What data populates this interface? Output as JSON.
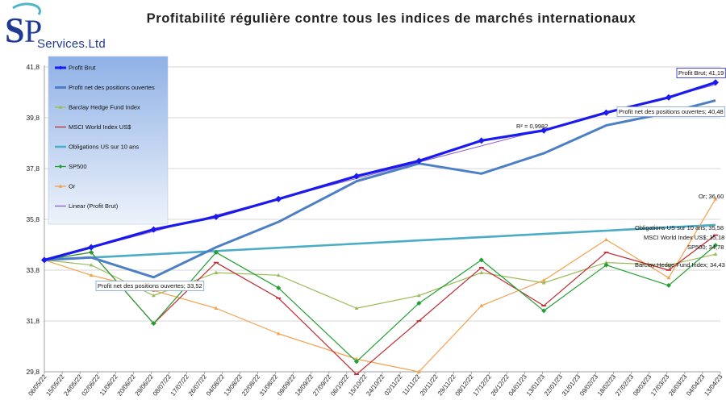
{
  "brand": {
    "logo_letters": "SP",
    "logo_text": "Services.Ltd"
  },
  "chart_data": {
    "type": "line",
    "title": "Profitabilité régulière contre tous les indices de marchés internationaux",
    "xlabel": "",
    "ylabel": "",
    "ylim": [
      29.8,
      41.8
    ],
    "yticks": [
      29.8,
      31.8,
      33.8,
      35.8,
      37.8,
      39.8,
      41.8
    ],
    "ytick_labels": [
      "29,8",
      "31,8",
      "33,8",
      "35,8",
      "37,8",
      "39,8",
      "41,8"
    ],
    "grid": "horizontal",
    "legend_position": "top-left",
    "x": [
      "06/05/22",
      "15/05/22",
      "24/05/22",
      "02/06/22",
      "11/06/22",
      "20/06/22",
      "29/06/22",
      "08/07/22",
      "17/07/22",
      "26/07/22",
      "04/08/22",
      "13/08/22",
      "22/08/22",
      "31/08/22",
      "09/09/22",
      "18/09/22",
      "27/09/22",
      "06/10/22",
      "15/10/22",
      "24/10/22",
      "02/11/22",
      "11/11/22",
      "20/11/22",
      "29/11/22",
      "08/12/22",
      "17/12/22",
      "26/12/22",
      "04/01/23",
      "13/01/23",
      "22/01/23",
      "31/01/23",
      "09/02/23",
      "18/02/23",
      "27/02/23",
      "08/03/23",
      "17/03/23",
      "26/03/23",
      "04/04/23",
      "13/04/23"
    ],
    "series": [
      {
        "name": "Profit Brut",
        "color": "#1a1aee",
        "marker": "diamond",
        "points": [
          [
            0,
            34.2
          ],
          [
            3,
            34.7
          ],
          [
            7,
            35.4
          ],
          [
            11,
            35.9
          ],
          [
            15,
            36.6
          ],
          [
            20,
            37.5
          ],
          [
            24,
            38.1
          ],
          [
            28,
            38.9
          ],
          [
            32,
            39.3
          ],
          [
            36,
            40.0
          ],
          [
            40,
            40.6
          ],
          [
            43,
            41.19
          ]
        ]
      },
      {
        "name": "Profit net des positions ouvertes",
        "color": "#4d7fc4",
        "marker": "none",
        "points": [
          [
            0,
            34.2
          ],
          [
            3,
            34.3
          ],
          [
            7,
            33.52
          ],
          [
            11,
            34.7
          ],
          [
            15,
            35.7
          ],
          [
            20,
            37.3
          ],
          [
            24,
            38.0
          ],
          [
            28,
            37.6
          ],
          [
            32,
            38.4
          ],
          [
            36,
            39.5
          ],
          [
            40,
            40.0
          ],
          [
            43,
            40.48
          ]
        ]
      },
      {
        "name": "Barclay Hedge Fund Index",
        "color": "#9bbb59",
        "marker": "triangle",
        "points": [
          [
            0,
            34.2
          ],
          [
            3,
            34.0
          ],
          [
            7,
            32.8
          ],
          [
            11,
            33.7
          ],
          [
            15,
            33.6
          ],
          [
            20,
            32.3
          ],
          [
            24,
            32.8
          ],
          [
            28,
            33.7
          ],
          [
            32,
            33.3
          ],
          [
            36,
            34.1
          ],
          [
            40,
            34.0
          ],
          [
            43,
            34.43
          ]
        ]
      },
      {
        "name": "MSCI World Index US$",
        "color": "#c0272d",
        "marker": "dash",
        "points": [
          [
            0,
            34.2
          ],
          [
            3,
            34.5
          ],
          [
            7,
            31.7
          ],
          [
            11,
            34.1
          ],
          [
            15,
            32.7
          ],
          [
            20,
            29.7
          ],
          [
            24,
            31.8
          ],
          [
            28,
            33.9
          ],
          [
            32,
            32.4
          ],
          [
            36,
            34.5
          ],
          [
            40,
            33.8
          ],
          [
            43,
            35.18
          ]
        ]
      },
      {
        "name": "Obligations US sur 10 ans",
        "color": "#4bacc6",
        "marker": "none",
        "points": [
          [
            0,
            34.2
          ],
          [
            43,
            35.58
          ]
        ]
      },
      {
        "name": "SP500",
        "color": "#22a033",
        "marker": "diamond",
        "points": [
          [
            0,
            34.2
          ],
          [
            3,
            34.5
          ],
          [
            7,
            31.7
          ],
          [
            11,
            34.5
          ],
          [
            15,
            33.1
          ],
          [
            20,
            30.2
          ],
          [
            24,
            32.5
          ],
          [
            28,
            34.2
          ],
          [
            32,
            32.2
          ],
          [
            36,
            34.0
          ],
          [
            40,
            33.2
          ],
          [
            43,
            34.78
          ]
        ]
      },
      {
        "name": "Or",
        "color": "#f4a04b",
        "marker": "triangle",
        "points": [
          [
            0,
            34.2
          ],
          [
            3,
            33.6
          ],
          [
            7,
            33.0
          ],
          [
            11,
            32.3
          ],
          [
            15,
            31.3
          ],
          [
            20,
            30.3
          ],
          [
            24,
            29.8
          ],
          [
            28,
            32.4
          ],
          [
            32,
            33.4
          ],
          [
            36,
            35.0
          ],
          [
            40,
            33.5
          ],
          [
            43,
            36.6
          ]
        ]
      },
      {
        "name": "Linear (Profit Brut)",
        "color": "#8a5cc8",
        "marker": "none",
        "points": [
          [
            0,
            34.2
          ],
          [
            43,
            41.1
          ]
        ]
      }
    ],
    "annotations": [
      {
        "text": "Profit Brut; 41,19",
        "boxed": true
      },
      {
        "text": "Profit net des positions ouvertes; 40,48",
        "boxed": true
      },
      {
        "text": "R² = 0,9982",
        "boxed": false
      },
      {
        "text": "Or; 36,60",
        "boxed": false
      },
      {
        "text": "Obligations US sur 10 ans; 35,58",
        "boxed": false
      },
      {
        "text": "MSCI World Index US$; 35,18",
        "boxed": false
      },
      {
        "text": "SP500; 34,78",
        "boxed": false
      },
      {
        "text": "Barclay Hedge Fund Index; 34,43",
        "boxed": false
      },
      {
        "text": "Profit net des positions ouvertes; 33,52",
        "boxed": true
      }
    ]
  }
}
